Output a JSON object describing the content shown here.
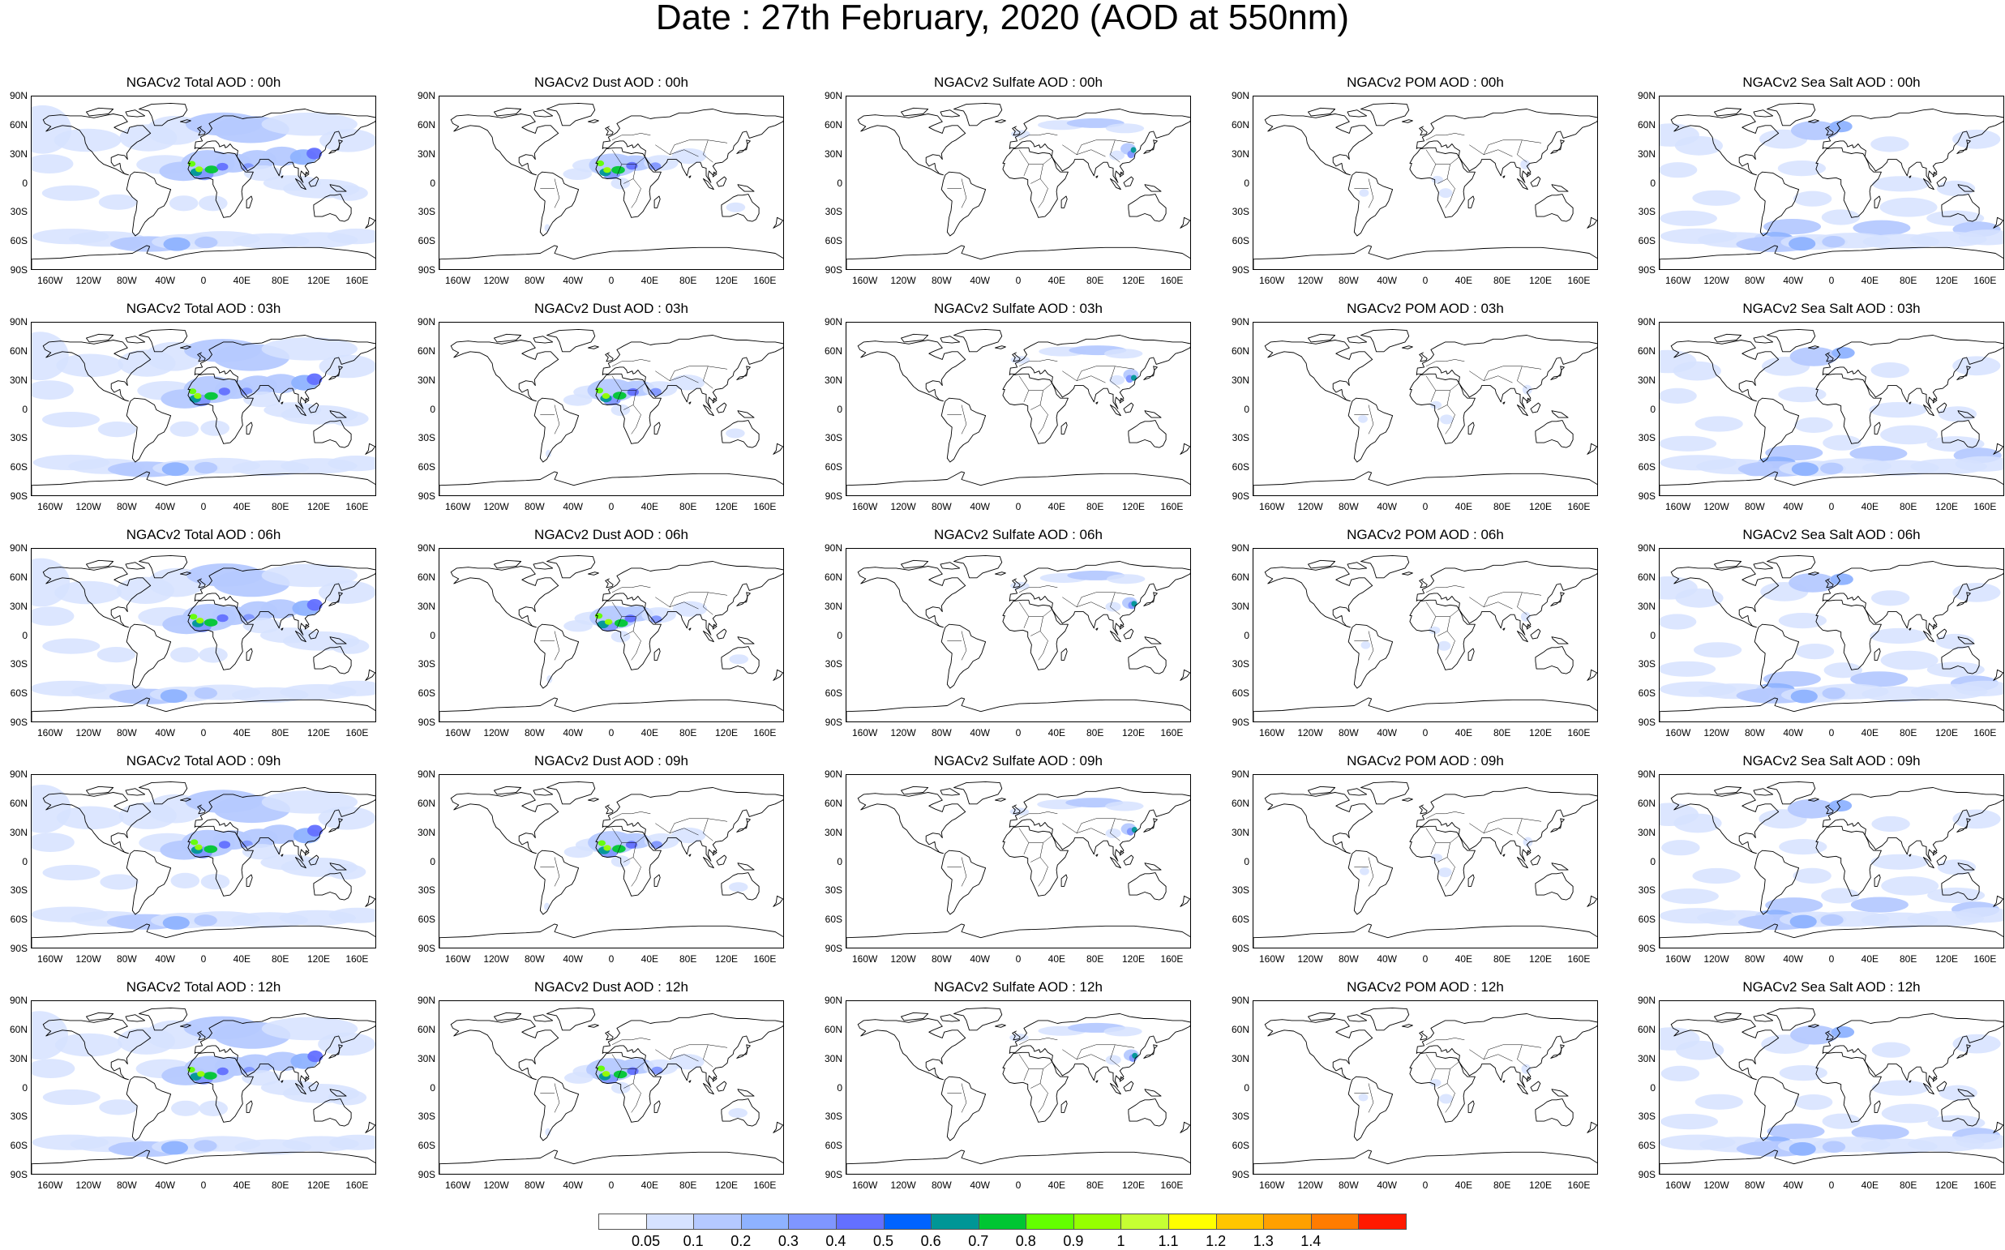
{
  "title": "Date : 27th February, 2020 (AOD at 550nm)",
  "panel_rows": [
    [
      "NGACv2 Total AOD : 00h",
      "NGACv2 Dust AOD : 00h",
      "NGACv2 Sulfate AOD : 00h",
      "NGACv2 POM AOD : 00h",
      "NGACv2 Sea Salt AOD : 00h"
    ],
    [
      "NGACv2 Total AOD : 03h",
      "NGACv2 Dust AOD : 03h",
      "NGACv2 Sulfate AOD : 03h",
      "NGACv2 POM AOD : 03h",
      "NGACv2 Sea Salt AOD : 03h"
    ],
    [
      "NGACv2 Total AOD : 06h",
      "NGACv2 Dust AOD : 06h",
      "NGACv2 Sulfate AOD : 06h",
      "NGACv2 POM AOD : 06h",
      "NGACv2 Sea Salt AOD : 06h"
    ],
    [
      "NGACv2 Total AOD : 09h",
      "NGACv2 Dust AOD : 09h",
      "NGACv2 Sulfate AOD : 09h",
      "NGACv2 POM AOD : 09h",
      "NGACv2 Sea Salt  AOD : 09h"
    ],
    [
      "NGACv2 Total AOD :  12h",
      "NGACv2 Dust AOD : 12h",
      "NGACv2 Sulfate AOD : 12h",
      "NGACv2 POM  AOD : 12h",
      "NGACv2 Sea Salt  AOD : 12h"
    ]
  ],
  "panel_types": [
    "total",
    "dust",
    "sulfate",
    "pom",
    "seasalt"
  ],
  "lat_labels": [
    "90N",
    "60N",
    "30N",
    "0",
    "30S",
    "60S",
    "90S"
  ],
  "lon_labels": [
    "160W",
    "120W",
    "80W",
    "40W",
    "0",
    "40E",
    "80E",
    "120E",
    "160E"
  ],
  "colorbar": {
    "labels": [
      "0.05",
      "0.1",
      "0.2",
      "0.3",
      "0.4",
      "0.5",
      "0.6",
      "0.7",
      "0.8",
      "0.9",
      "1",
      "1.1",
      "1.2",
      "1.3",
      "1.4"
    ],
    "colors": [
      "#ffffff",
      "#d6e2ff",
      "#b5c9ff",
      "#8eb2ff",
      "#7f96ff",
      "#6370ff",
      "#0063ff",
      "#009696",
      "#00c633",
      "#63ff00",
      "#96ff00",
      "#c6ff33",
      "#ffff00",
      "#ffc600",
      "#ffa000",
      "#ff7c00",
      "#ff1900"
    ]
  }
}
